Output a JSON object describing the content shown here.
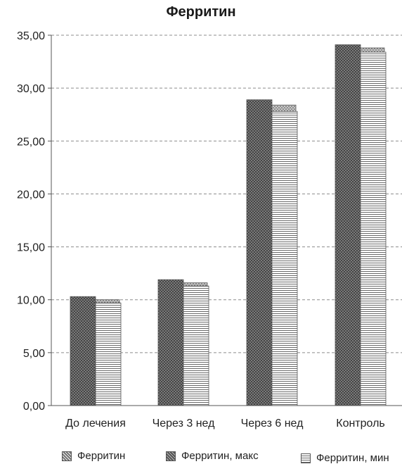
{
  "chart_data": {
    "type": "bar",
    "title": "Ферритин",
    "categories": [
      "До лечения",
      "Через 3 нед",
      "Через 6 нед",
      "Контроль"
    ],
    "series": [
      {
        "name": "Ферритин",
        "values": [
          10.0,
          11.6,
          28.4,
          33.8
        ],
        "pattern": "dots"
      },
      {
        "name": "Ферритин, макс",
        "values": [
          10.3,
          11.9,
          28.9,
          34.1
        ],
        "pattern": "crosshatch"
      },
      {
        "name": "Ферритин, мин",
        "values": [
          9.7,
          11.3,
          27.8,
          33.4
        ],
        "pattern": "horizontal-lines"
      }
    ],
    "ylim": [
      0,
      35
    ],
    "yticks": [
      "0,00",
      "5,00",
      "10,00",
      "15,00",
      "20,00",
      "25,00",
      "30,00",
      "35,00"
    ],
    "grid": true,
    "legend_position": "bottom"
  }
}
